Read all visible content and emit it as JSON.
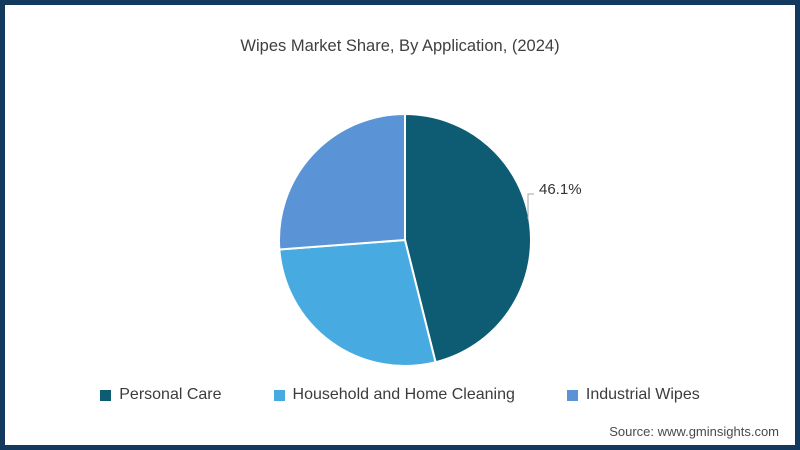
{
  "frame": {
    "border_color": "#14395f",
    "background_color": "#ffffff"
  },
  "title": "Wipes Market Share, By Application, (2024)",
  "callout": {
    "label": "46.1%",
    "line_color": "#a6a6a6"
  },
  "legend": {
    "position": "bottom",
    "items": [
      {
        "label": "Personal Care",
        "color": "#0d5c74"
      },
      {
        "label": "Household and Home Cleaning",
        "color": "#47abe1"
      },
      {
        "label": "Industrial Wipes",
        "color": "#5b94d6"
      }
    ]
  },
  "source": "Source: www.gminsights.com",
  "chart_data": {
    "type": "pie",
    "title": "Wipes Market Share, By Application, (2024)",
    "categories": [
      "Personal Care",
      "Household and Home Cleaning",
      "Industrial Wipes"
    ],
    "values": [
      46.1,
      27.7,
      26.2
    ],
    "colors": [
      "#0d5c74",
      "#47abe1",
      "#5b94d6"
    ],
    "unit": "%",
    "start_angle_deg": 0,
    "direction": "clockwise",
    "slice_stroke_color": "#ffffff",
    "data_labels": [
      "46.1%",
      "",
      ""
    ],
    "legend_position": "bottom",
    "annotations": [
      "46.1%"
    ]
  }
}
